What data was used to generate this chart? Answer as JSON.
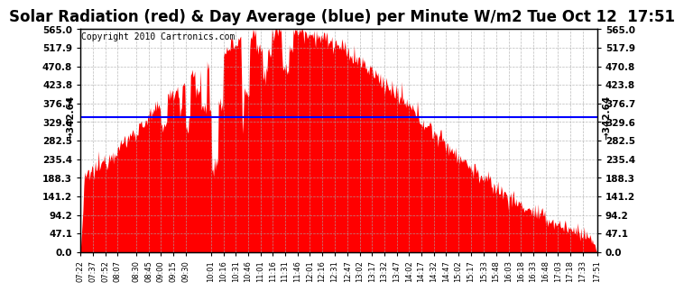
{
  "title": "Solar Radiation (red) & Day Average (blue) per Minute W/m2 Tue Oct 12  17:51",
  "copyright_text": "Copyright 2010 Cartronics.com",
  "y_max": 565.0,
  "y_min": 0.0,
  "y_ticks": [
    0.0,
    47.1,
    94.2,
    141.2,
    188.3,
    235.4,
    282.5,
    329.6,
    376.7,
    423.8,
    470.8,
    517.9,
    565.0
  ],
  "day_average": 342.64,
  "fill_color": "#FF0000",
  "avg_line_color": "#0000FF",
  "background_color": "#FFFFFF",
  "plot_bg_color": "#FFFFFF",
  "grid_color": "#AAAAAA",
  "title_fontsize": 12,
  "copyright_fontsize": 7,
  "x_tick_labels": [
    "07:22",
    "07:37",
    "07:52",
    "08:07",
    "08:30",
    "08:45",
    "09:00",
    "09:15",
    "09:30",
    "10:01",
    "10:16",
    "10:31",
    "10:46",
    "11:01",
    "11:16",
    "11:31",
    "11:46",
    "12:01",
    "12:16",
    "12:31",
    "12:47",
    "13:02",
    "13:17",
    "13:32",
    "13:47",
    "14:02",
    "14:17",
    "14:32",
    "14:47",
    "15:02",
    "15:17",
    "15:33",
    "15:48",
    "16:03",
    "16:18",
    "16:33",
    "16:48",
    "17:03",
    "17:18",
    "17:33",
    "17:51"
  ]
}
